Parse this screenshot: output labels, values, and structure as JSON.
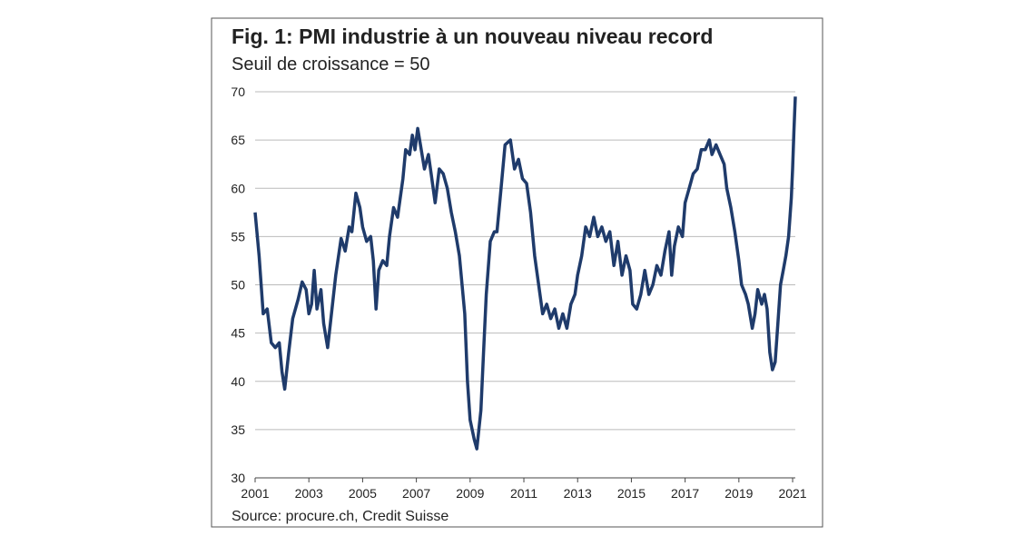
{
  "chart_data": {
    "type": "line",
    "title": "Fig. 1: PMI industrie à un nouveau niveau record",
    "subtitle": "Seuil de croissance = 50",
    "source": "Source: procure.ch, Credit Suisse",
    "color": "#1f3b6b",
    "grid": true,
    "xlim": [
      2001,
      2021.1
    ],
    "xticks": [
      2001,
      2003,
      2005,
      2007,
      2009,
      2011,
      2013,
      2015,
      2017,
      2019,
      2021
    ],
    "ylim": [
      30,
      70
    ],
    "yticks": [
      30,
      35,
      40,
      45,
      50,
      55,
      60,
      65,
      70
    ],
    "x": [
      2001.0,
      2001.15,
      2001.3,
      2001.45,
      2001.6,
      2001.75,
      2001.9,
      2002.0,
      2002.1,
      2002.25,
      2002.4,
      2002.6,
      2002.75,
      2002.9,
      2003.0,
      2003.1,
      2003.2,
      2003.3,
      2003.45,
      2003.55,
      2003.7,
      2003.8,
      2004.0,
      2004.2,
      2004.35,
      2004.5,
      2004.6,
      2004.75,
      2004.9,
      2005.0,
      2005.15,
      2005.3,
      2005.4,
      2005.5,
      2005.6,
      2005.75,
      2005.9,
      2006.0,
      2006.15,
      2006.3,
      2006.5,
      2006.6,
      2006.75,
      2006.85,
      2006.95,
      2007.05,
      2007.15,
      2007.3,
      2007.45,
      2007.55,
      2007.7,
      2007.85,
      2008.0,
      2008.15,
      2008.3,
      2008.45,
      2008.6,
      2008.8,
      2008.9,
      2009.0,
      2009.15,
      2009.25,
      2009.4,
      2009.5,
      2009.6,
      2009.75,
      2009.9,
      2010.0,
      2010.15,
      2010.3,
      2010.5,
      2010.65,
      2010.8,
      2010.95,
      2011.1,
      2011.25,
      2011.4,
      2011.55,
      2011.7,
      2011.85,
      2012.0,
      2012.15,
      2012.3,
      2012.45,
      2012.6,
      2012.75,
      2012.9,
      2013.0,
      2013.15,
      2013.3,
      2013.45,
      2013.6,
      2013.75,
      2013.9,
      2014.05,
      2014.2,
      2014.35,
      2014.5,
      2014.65,
      2014.8,
      2014.95,
      2015.05,
      2015.2,
      2015.35,
      2015.5,
      2015.65,
      2015.8,
      2015.95,
      2016.1,
      2016.25,
      2016.4,
      2016.5,
      2016.6,
      2016.75,
      2016.9,
      2017.0,
      2017.15,
      2017.3,
      2017.45,
      2017.6,
      2017.75,
      2017.9,
      2018.0,
      2018.15,
      2018.3,
      2018.45,
      2018.55,
      2018.7,
      2018.85,
      2019.0,
      2019.1,
      2019.25,
      2019.35,
      2019.5,
      2019.6,
      2019.7,
      2019.85,
      2019.95,
      2020.05,
      2020.15,
      2020.25,
      2020.35,
      2020.45,
      2020.55,
      2020.65,
      2020.75,
      2020.85,
      2020.95,
      2021.0,
      2021.05,
      2021.1
    ],
    "values": [
      57.5,
      53,
      47,
      47.5,
      44,
      43.5,
      44,
      41,
      39.2,
      43,
      46.5,
      48.5,
      50.3,
      49.5,
      47,
      48,
      51.5,
      47.5,
      49.5,
      46,
      43.5,
      46,
      51,
      54.8,
      53.5,
      56,
      55.5,
      59.5,
      58,
      56,
      54.5,
      55,
      52.5,
      47.5,
      51.5,
      52.5,
      52,
      55,
      58,
      57,
      61,
      64,
      63.5,
      65.5,
      64,
      66.2,
      64.5,
      62,
      63.5,
      61.5,
      58.5,
      62,
      61.5,
      60,
      57.5,
      55.5,
      53,
      47,
      40,
      36,
      34,
      33,
      37,
      43,
      49,
      54.5,
      55.5,
      55.5,
      60,
      64.5,
      65,
      62,
      63,
      61,
      60.5,
      57.5,
      53,
      50,
      47,
      48,
      46.5,
      47.5,
      45.5,
      47,
      45.5,
      48,
      49,
      51,
      53,
      56,
      55,
      57,
      55,
      56,
      54.5,
      55.5,
      52,
      54.5,
      51,
      53,
      51.5,
      48,
      47.5,
      49,
      51.5,
      49,
      50,
      52,
      51,
      53.5,
      55.5,
      51,
      54,
      56,
      55,
      58.5,
      60,
      61.5,
      62,
      64,
      64,
      65,
      63.5,
      64.5,
      63.5,
      62.5,
      60,
      58,
      55.5,
      52.5,
      50,
      49,
      48,
      45.5,
      47,
      49.5,
      48,
      49,
      47.5,
      43,
      41.2,
      42,
      46,
      50,
      51.5,
      53,
      55,
      59,
      62,
      66,
      69.5
    ]
  }
}
